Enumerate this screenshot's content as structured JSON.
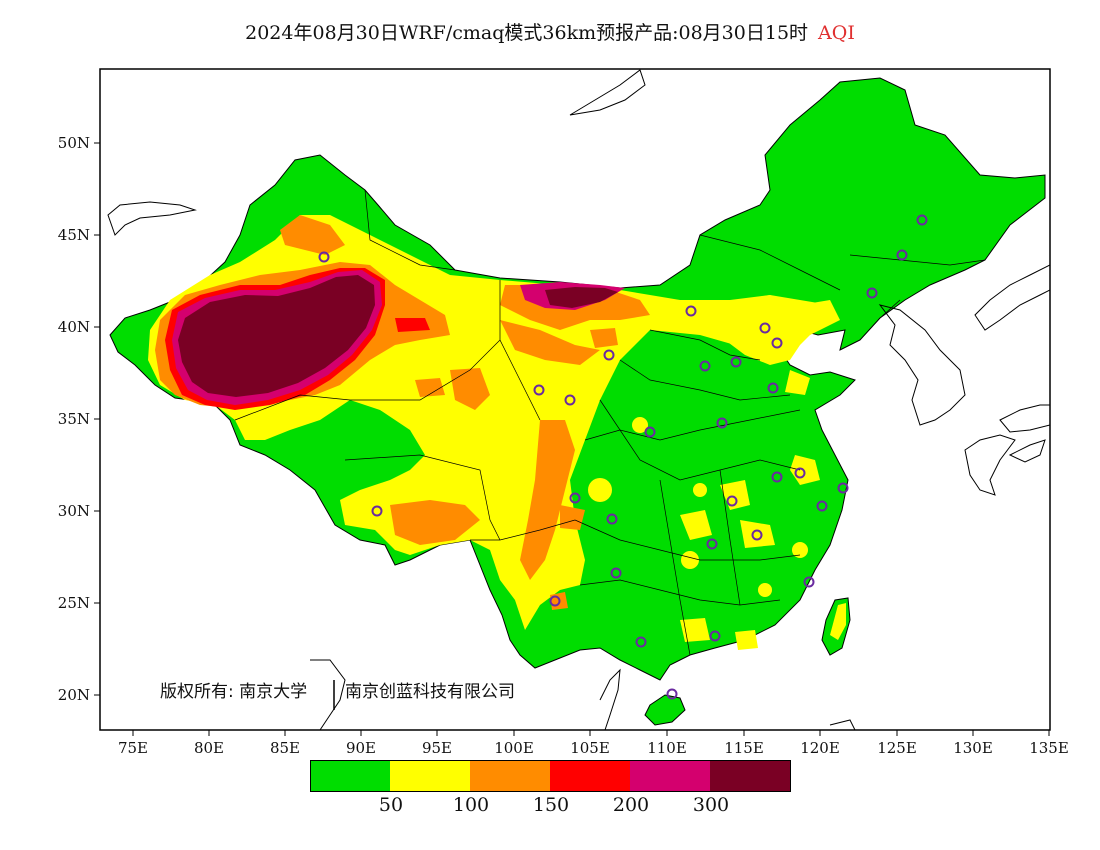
{
  "header": {
    "title": "2024年08月30日WRF/cmaq模式36km预报产品:08月30日15时",
    "variable": "AQI"
  },
  "map": {
    "x_ticks": [
      "75E",
      "80E",
      "85E",
      "90E",
      "95E",
      "100E",
      "105E",
      "110E",
      "115E",
      "120E",
      "125E",
      "130E",
      "135E"
    ],
    "y_ticks": [
      "50N",
      "45N",
      "40N",
      "35N",
      "30N",
      "25N",
      "20N"
    ],
    "lon_range": [
      73,
      135
    ],
    "lat_range": [
      18,
      54
    ],
    "copyright": "版权所有: 南京大学",
    "copyright2": "南京创蓝科技有限公司"
  },
  "legend": {
    "colors": [
      "#00dd00",
      "#ffff00",
      "#ff8c00",
      "#ff0000",
      "#d4006e",
      "#7a0024"
    ],
    "labels": [
      "50",
      "100",
      "150",
      "200",
      "300"
    ]
  },
  "colors": {
    "station_marker": "#6a2aa0",
    "coast_line": "#000000"
  }
}
